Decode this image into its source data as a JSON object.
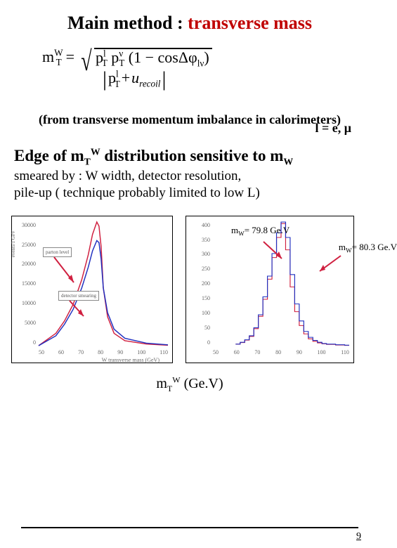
{
  "title": {
    "prefix": "Main method",
    "colon": " : ",
    "highlight": "transverse mass"
  },
  "formula": {
    "lhs_base": "m",
    "lhs_sub": "T",
    "lhs_sup": "W",
    "pt_l": "p",
    "pt_l_sub": "T",
    "pt_l_sup": "l",
    "pt_nu": "p",
    "pt_nu_sub": "T",
    "pt_nu_sup": "ν",
    "paren": "(1 − cosΔφ",
    "paren_sub": "lν",
    "paren_close": ")",
    "denom_left": "p",
    "denom_left_sub": "T",
    "denom_left_sup": "l",
    "denom_plus": " + ",
    "denom_right": "u",
    "denom_right_sub": "recoil"
  },
  "lepton_note": "l = e, μ",
  "imbalance_note": "(from transverse momentum imbalance in calorimeters)",
  "edge": {
    "prefix": "Edge of m",
    "sub": "T",
    "sup": "W",
    "mid": "   distribution sensitive  to m",
    "sub2": "W"
  },
  "smeared": {
    "line1": "smeared by :  W width, detector resolution,",
    "line2": " pile-up ( technique probably limited to low L)"
  },
  "chart_left": {
    "y_ticks": [
      "30000",
      "25000",
      "20000",
      "15000",
      "10000",
      "5000",
      "0"
    ],
    "x_ticks": [
      "50",
      "60",
      "70",
      "80",
      "90",
      "100",
      "110"
    ],
    "x_label": "W transverse mass (GeV)",
    "y_label": "events/1 GeV",
    "legend1": "parton level",
    "legend2": "detector smearing",
    "colors": {
      "series_a": "#d02040",
      "series_b": "#2030c0",
      "axis": "#555555"
    },
    "curve_a": [
      [
        50,
        0
      ],
      [
        58,
        3
      ],
      [
        62,
        6
      ],
      [
        66,
        10
      ],
      [
        70,
        16
      ],
      [
        73,
        22
      ],
      [
        75,
        27
      ],
      [
        77,
        30
      ],
      [
        78,
        29
      ],
      [
        79,
        24
      ],
      [
        80,
        14
      ],
      [
        82,
        7
      ],
      [
        85,
        3
      ],
      [
        90,
        1.2
      ],
      [
        100,
        0.4
      ],
      [
        110,
        0.1
      ]
    ],
    "curve_b": [
      [
        50,
        0
      ],
      [
        58,
        2.4
      ],
      [
        62,
        5.2
      ],
      [
        66,
        8.8
      ],
      [
        70,
        14
      ],
      [
        73,
        19
      ],
      [
        75,
        23
      ],
      [
        77,
        25.5
      ],
      [
        78,
        25
      ],
      [
        79,
        21
      ],
      [
        80,
        14
      ],
      [
        82,
        8
      ],
      [
        85,
        4
      ],
      [
        90,
        1.8
      ],
      [
        100,
        0.6
      ],
      [
        110,
        0.2
      ]
    ],
    "xlim": [
      50,
      110
    ],
    "ylim": [
      0,
      30
    ],
    "arrow_color": "#d02040"
  },
  "chart_right": {
    "y_ticks": [
      "400",
      "350",
      "300",
      "250",
      "200",
      "150",
      "100",
      "50",
      "0"
    ],
    "x_ticks": [
      "50",
      "60",
      "70",
      "80",
      "90",
      "100",
      "110"
    ],
    "colors": {
      "s1": "#d02040",
      "s2": "#2030c0",
      "axis": "#555555"
    },
    "hist1": [
      [
        60,
        5
      ],
      [
        62,
        10
      ],
      [
        64,
        18
      ],
      [
        66,
        30
      ],
      [
        68,
        55
      ],
      [
        70,
        95
      ],
      [
        72,
        150
      ],
      [
        74,
        215
      ],
      [
        76,
        285
      ],
      [
        78,
        350
      ],
      [
        80,
        395
      ],
      [
        82,
        310
      ],
      [
        84,
        190
      ],
      [
        86,
        110
      ],
      [
        88,
        65
      ],
      [
        90,
        38
      ],
      [
        92,
        22
      ],
      [
        94,
        14
      ],
      [
        96,
        9
      ],
      [
        98,
        6
      ],
      [
        100,
        4
      ],
      [
        104,
        2
      ],
      [
        108,
        1
      ]
    ],
    "hist2": [
      [
        60,
        5
      ],
      [
        62,
        11
      ],
      [
        64,
        19
      ],
      [
        66,
        32
      ],
      [
        68,
        58
      ],
      [
        70,
        100
      ],
      [
        72,
        158
      ],
      [
        74,
        225
      ],
      [
        76,
        298
      ],
      [
        78,
        365
      ],
      [
        80,
        400
      ],
      [
        82,
        350
      ],
      [
        84,
        230
      ],
      [
        86,
        135
      ],
      [
        88,
        80
      ],
      [
        90,
        46
      ],
      [
        92,
        27
      ],
      [
        94,
        17
      ],
      [
        96,
        11
      ],
      [
        98,
        7
      ],
      [
        100,
        5
      ],
      [
        104,
        3
      ],
      [
        108,
        1.5
      ]
    ],
    "xlim": [
      50,
      110
    ],
    "ylim": [
      0,
      400
    ],
    "annot1": {
      "pre": "m",
      "sub": "W",
      "rest": "= 79.8 Ge.V"
    },
    "annot2": {
      "pre": "m",
      "sub": "W",
      "rest": "= 80.3 Ge.V"
    },
    "arrow_color": "#d02040"
  },
  "axis_caption": {
    "pre": "m",
    "sub": "T",
    "sup": "W",
    "rest": " (Ge.V)"
  },
  "page_number": "9"
}
